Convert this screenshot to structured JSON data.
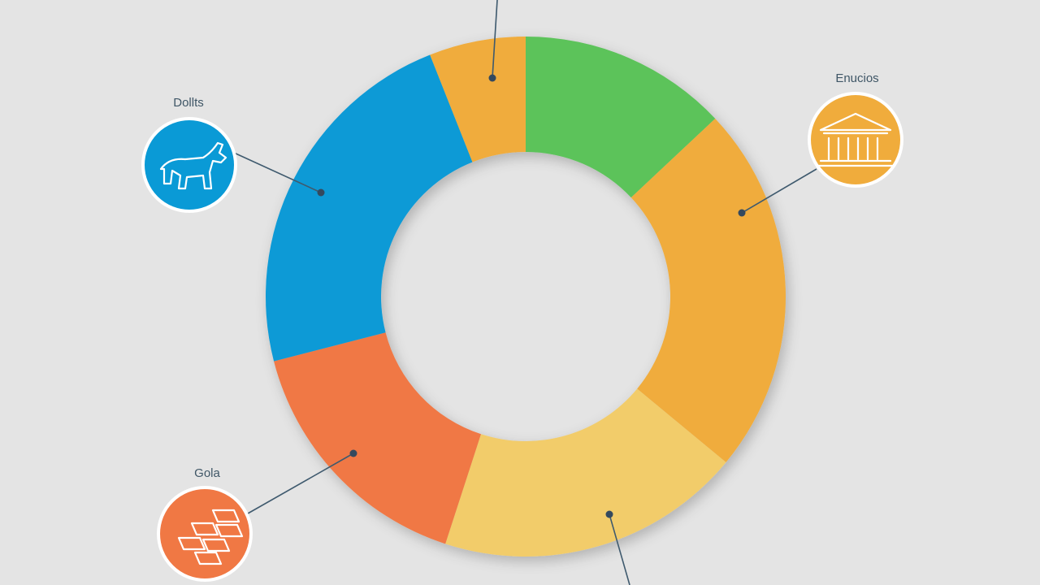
{
  "chart_data": {
    "type": "donut",
    "categories": [
      null,
      "Enucios",
      null,
      "Gola",
      "Dollts",
      null
    ],
    "values": [
      13,
      23,
      19,
      16,
      23,
      6
    ],
    "colors": [
      "#5cc35a",
      "#f0ac3c",
      "#f2cc6a",
      "#f07844",
      "#0a9ad6",
      "#f0ac3c"
    ]
  }
}
